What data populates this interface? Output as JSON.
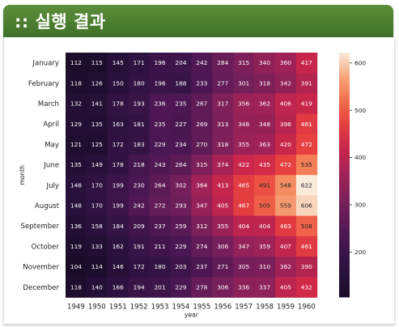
{
  "header": {
    "title": ":: 실행 결과"
  },
  "chart_data": {
    "type": "heatmap",
    "title": "",
    "xlabel": "year",
    "ylabel": "month",
    "x": [
      "1949",
      "1950",
      "1951",
      "1952",
      "1953",
      "1954",
      "1955",
      "1956",
      "1957",
      "1958",
      "1959",
      "1960"
    ],
    "y": [
      "January",
      "February",
      "March",
      "April",
      "May",
      "June",
      "July",
      "August",
      "September",
      "October",
      "November",
      "December"
    ],
    "values": [
      [
        112,
        115,
        145,
        171,
        196,
        204,
        242,
        284,
        315,
        340,
        360,
        417
      ],
      [
        118,
        126,
        150,
        180,
        196,
        188,
        233,
        277,
        301,
        318,
        342,
        391
      ],
      [
        132,
        141,
        178,
        193,
        236,
        235,
        267,
        317,
        356,
        362,
        406,
        419
      ],
      [
        129,
        135,
        163,
        181,
        235,
        227,
        269,
        313,
        348,
        348,
        396,
        461
      ],
      [
        121,
        125,
        172,
        183,
        229,
        234,
        270,
        318,
        355,
        363,
        420,
        472
      ],
      [
        135,
        149,
        178,
        218,
        243,
        264,
        315,
        374,
        422,
        435,
        472,
        535
      ],
      [
        148,
        170,
        199,
        230,
        264,
        302,
        364,
        413,
        465,
        491,
        548,
        622
      ],
      [
        148,
        170,
        199,
        242,
        272,
        293,
        347,
        405,
        467,
        505,
        559,
        606
      ],
      [
        136,
        158,
        184,
        209,
        237,
        259,
        312,
        355,
        404,
        404,
        463,
        508
      ],
      [
        119,
        133,
        162,
        191,
        211,
        229,
        274,
        306,
        347,
        359,
        407,
        461
      ],
      [
        104,
        114,
        146,
        172,
        180,
        203,
        237,
        271,
        305,
        310,
        362,
        390
      ],
      [
        118,
        140,
        166,
        194,
        201,
        229,
        278,
        306,
        336,
        337,
        405,
        432
      ]
    ],
    "colorbar": {
      "ticks": [
        200,
        300,
        400,
        500,
        600
      ],
      "range": [
        104,
        622
      ]
    },
    "colormap": "rocket",
    "annotated": true
  }
}
